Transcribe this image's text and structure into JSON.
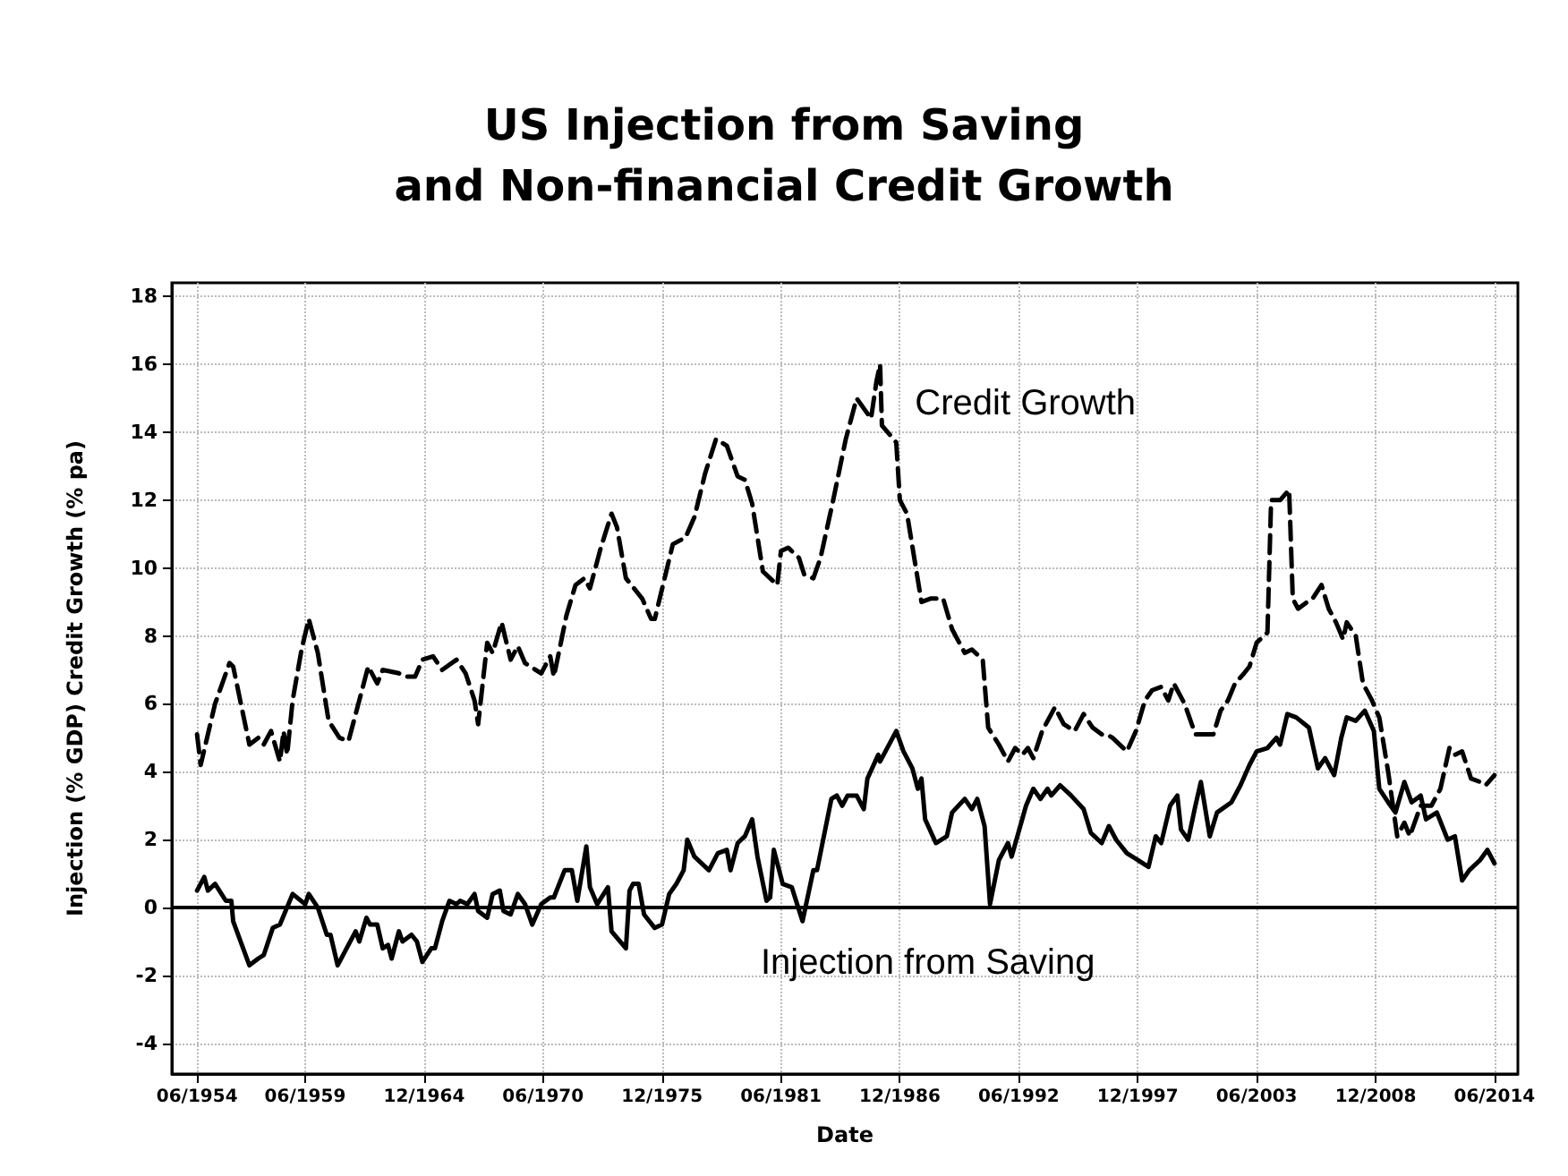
{
  "chart_data": {
    "type": "line",
    "title": "US Injection from Saving\nand Non-financial Credit Growth",
    "xlabel": "Date",
    "ylabel": "Injection (% GDP) Credit Growth (% pa)",
    "xlim": [
      "1953-04",
      "2015-07"
    ],
    "xticks": [
      {
        "value": "1954-06",
        "label": "06/1954"
      },
      {
        "value": "1959-06",
        "label": "06/1959"
      },
      {
        "value": "1964-12",
        "label": "12/1964"
      },
      {
        "value": "1970-06",
        "label": "06/1970"
      },
      {
        "value": "1975-12",
        "label": "12/1975"
      },
      {
        "value": "1981-06",
        "label": "06/1981"
      },
      {
        "value": "1986-12",
        "label": "12/1986"
      },
      {
        "value": "1992-06",
        "label": "06/1992"
      },
      {
        "value": "1997-12",
        "label": "12/1997"
      },
      {
        "value": "2003-06",
        "label": "06/2003"
      },
      {
        "value": "2008-12",
        "label": "12/2008"
      },
      {
        "value": "2014-06",
        "label": "06/2014"
      }
    ],
    "ylim": [
      -4.9,
      18.4
    ],
    "yticks": [
      -4,
      -2,
      0,
      2,
      4,
      6,
      8,
      10,
      12,
      14,
      16,
      18
    ],
    "grid": true,
    "legend": false,
    "marker": "none",
    "ref_lines": [
      {
        "axis": "y",
        "value": 0,
        "color": "#000000",
        "line_style": "solid"
      }
    ],
    "series": [
      {
        "name": "Credit Growth",
        "color": "#000000",
        "line_style": "dashed",
        "x": [
          "1954-06",
          "1954-08",
          "1955-04",
          "1955-12",
          "1956-02",
          "1956-11",
          "1957-04",
          "1957-07",
          "1957-11",
          "1958-04",
          "1958-06",
          "1958-08",
          "1958-11",
          "1959-04",
          "1959-08",
          "1960-01",
          "1960-07",
          "1961-01",
          "1961-06",
          "1961-12",
          "1962-05",
          "1962-10",
          "1963-01",
          "1963-10",
          "1964-02",
          "1964-07",
          "1964-11",
          "1965-05",
          "1965-10",
          "1966-06",
          "1966-11",
          "1967-04",
          "1967-06",
          "1967-11",
          "1968-02",
          "1968-07",
          "1968-12",
          "1969-04",
          "1969-08",
          "1970-05",
          "1970-10",
          "1970-12",
          "1971-07",
          "1971-12",
          "1972-05",
          "1972-08",
          "1973-02",
          "1973-08",
          "1973-11",
          "1974-04",
          "1974-10",
          "1975-01",
          "1975-06",
          "1975-08",
          "1976-01",
          "1976-06",
          "1977-01",
          "1977-06",
          "1977-12",
          "1978-06",
          "1978-12",
          "1979-06",
          "1979-10",
          "1980-02",
          "1980-08",
          "1981-04",
          "1981-06",
          "1981-10",
          "1982-04",
          "1982-07",
          "1982-12",
          "1983-04",
          "1983-11",
          "1984-06",
          "1984-12",
          "1985-04",
          "1985-08",
          "1985-11",
          "1986-01",
          "1986-02",
          "1986-10",
          "1986-12",
          "1987-04",
          "1987-08",
          "1987-12",
          "1988-05",
          "1988-12",
          "1989-05",
          "1989-12",
          "1990-04",
          "1990-10",
          "1991-01",
          "1991-07",
          "1991-12",
          "1992-04",
          "1992-08",
          "1992-11",
          "1993-02",
          "1993-07",
          "1994-02",
          "1994-07",
          "1995-01",
          "1995-06",
          "1995-11",
          "1996-04",
          "1996-07",
          "1996-10",
          "1997-06",
          "1997-11",
          "1998-04",
          "1998-08",
          "1999-01",
          "1999-05",
          "1999-08",
          "2000-02",
          "2000-08",
          "2001-01",
          "2001-06",
          "2001-10",
          "2002-02",
          "2002-06",
          "2002-11",
          "2003-02",
          "2003-06",
          "2003-12",
          "2004-02",
          "2004-07",
          "2004-12",
          "2005-02",
          "2005-05",
          "2005-10",
          "2006-01",
          "2006-06",
          "2006-10",
          "2007-02",
          "2007-06",
          "2007-08",
          "2008-01",
          "2008-05",
          "2008-10",
          "2009-02",
          "2009-07",
          "2009-12",
          "2010-04",
          "2010-07",
          "2011-01",
          "2011-07",
          "2011-12",
          "2012-05",
          "2012-08",
          "2012-12",
          "2013-05",
          "2013-10",
          "2014-01",
          "2014-06"
        ],
        "values": [
          5.1,
          4.2,
          6.0,
          7.2,
          7.1,
          4.8,
          5.0,
          4.8,
          5.2,
          4.3,
          5.2,
          4.5,
          6.1,
          7.6,
          8.5,
          7.5,
          5.5,
          5.0,
          4.9,
          6.1,
          7.1,
          6.6,
          7.0,
          6.9,
          6.8,
          6.8,
          7.3,
          7.4,
          7.0,
          7.3,
          6.9,
          6.1,
          5.4,
          7.8,
          7.5,
          8.4,
          7.3,
          7.7,
          7.2,
          6.9,
          7.4,
          6.8,
          8.6,
          9.5,
          9.7,
          9.4,
          10.6,
          11.6,
          11.2,
          9.7,
          9.3,
          9.1,
          8.5,
          8.5,
          9.6,
          10.7,
          10.9,
          11.5,
          12.8,
          13.8,
          13.6,
          12.7,
          12.6,
          11.9,
          9.9,
          9.5,
          10.5,
          10.6,
          10.3,
          9.8,
          9.7,
          10.3,
          12.0,
          13.8,
          15.0,
          14.7,
          14.4,
          15.5,
          16.0,
          14.2,
          13.7,
          12.0,
          11.6,
          10.3,
          9.0,
          9.1,
          9.1,
          8.2,
          7.5,
          7.6,
          7.3,
          5.3,
          4.8,
          4.3,
          4.7,
          4.5,
          4.7,
          4.4,
          5.2,
          5.9,
          5.4,
          5.2,
          5.7,
          5.3,
          5.1,
          5.1,
          5.0,
          4.6,
          5.2,
          6.1,
          6.4,
          6.5,
          6.1,
          6.6,
          6.0,
          5.1,
          5.1,
          5.1,
          5.8,
          6.1,
          6.6,
          6.9,
          7.1,
          7.8,
          8.1,
          12.0,
          12.0,
          12.3,
          9.1,
          8.8,
          9.0,
          9.1,
          9.5,
          8.8,
          8.4,
          7.9,
          8.4,
          8.0,
          6.6,
          6.1,
          5.6,
          4.0,
          2.1,
          2.5,
          2.1,
          3.0,
          3.0,
          3.5,
          4.7,
          4.5,
          4.6,
          3.8,
          3.7,
          3.6,
          3.9
        ]
      },
      {
        "name": "Injection from Saving",
        "color": "#000000",
        "line_style": "solid",
        "x": [
          "1954-06",
          "1954-10",
          "1954-12",
          "1955-04",
          "1955-10",
          "1956-01",
          "1956-02",
          "1956-11",
          "1957-04",
          "1957-07",
          "1957-12",
          "1958-04",
          "1958-11",
          "1959-06",
          "1959-08",
          "1960-01",
          "1960-06",
          "1960-08",
          "1960-12",
          "1961-05",
          "1961-10",
          "1961-12",
          "1962-04",
          "1962-06",
          "1962-10",
          "1963-01",
          "1963-04",
          "1963-06",
          "1963-10",
          "1963-12",
          "1964-05",
          "1964-08",
          "1964-11",
          "1965-04",
          "1965-06",
          "1965-10",
          "1966-02",
          "1966-06",
          "1966-08",
          "1966-12",
          "1967-04",
          "1967-06",
          "1967-11",
          "1968-02",
          "1968-06",
          "1968-08",
          "1968-12",
          "1969-04",
          "1969-08",
          "1969-12",
          "1970-05",
          "1970-10",
          "1970-12",
          "1971-06",
          "1971-10",
          "1972-01",
          "1972-06",
          "1972-08",
          "1972-12",
          "1973-06",
          "1973-08",
          "1974-04",
          "1974-06",
          "1974-08",
          "1974-11",
          "1975-02",
          "1975-08",
          "1975-12",
          "1976-04",
          "1976-08",
          "1976-12",
          "1977-02",
          "1977-06",
          "1978-02",
          "1978-07",
          "1978-12",
          "1979-02",
          "1979-06",
          "1979-10",
          "1980-02",
          "1980-05",
          "1980-10",
          "1980-12",
          "1981-02",
          "1981-07",
          "1981-12",
          "1982-06",
          "1982-12",
          "1983-02",
          "1983-10",
          "1984-01",
          "1984-04",
          "1984-07",
          "1984-12",
          "1985-04",
          "1985-06",
          "1985-12",
          "1986-01",
          "1986-10",
          "1987-02",
          "1987-07",
          "1987-10",
          "1987-12",
          "1988-02",
          "1988-08",
          "1989-02",
          "1989-05",
          "1989-12",
          "1990-04",
          "1990-07",
          "1990-11",
          "1991-02",
          "1991-07",
          "1991-12",
          "1992-02",
          "1992-10",
          "1993-02",
          "1993-06",
          "1993-10",
          "1993-12",
          "1994-05",
          "1994-11",
          "1995-06",
          "1995-10",
          "1996-04",
          "1996-08",
          "1996-12",
          "1997-06",
          "1997-12",
          "1998-06",
          "1998-10",
          "1999-01",
          "1999-06",
          "1999-10",
          "1999-12",
          "2000-04",
          "2000-08",
          "2000-11",
          "2001-04",
          "2001-08",
          "2002-04",
          "2002-09",
          "2003-02",
          "2003-06",
          "2003-12",
          "2004-05",
          "2004-07",
          "2004-11",
          "2005-04",
          "2005-11",
          "2006-04",
          "2006-08",
          "2007-01",
          "2007-05",
          "2007-08",
          "2008-01",
          "2008-06",
          "2008-11",
          "2009-02",
          "2009-07",
          "2009-11",
          "2010-04",
          "2010-08",
          "2011-01",
          "2011-04",
          "2011-10",
          "2012-04",
          "2012-08",
          "2012-12",
          "2013-04",
          "2013-10",
          "2014-02",
          "2014-06"
        ],
        "values": [
          0.5,
          0.9,
          0.5,
          0.7,
          0.2,
          0.2,
          -0.4,
          -1.7,
          -1.5,
          -1.4,
          -0.6,
          -0.5,
          0.4,
          0.1,
          0.4,
          0.0,
          -0.8,
          -0.8,
          -1.7,
          -1.2,
          -0.7,
          -1.0,
          -0.3,
          -0.5,
          -0.5,
          -1.2,
          -1.1,
          -1.5,
          -0.7,
          -1.0,
          -0.8,
          -1.0,
          -1.6,
          -1.2,
          -1.2,
          -0.4,
          0.2,
          0.1,
          0.2,
          0.1,
          0.4,
          -0.1,
          -0.3,
          0.4,
          0.5,
          -0.1,
          -0.2,
          0.4,
          0.1,
          -0.5,
          0.1,
          0.3,
          0.3,
          1.1,
          1.1,
          0.2,
          1.8,
          0.6,
          0.1,
          0.6,
          -0.7,
          -1.2,
          0.5,
          0.7,
          0.7,
          -0.2,
          -0.6,
          -0.5,
          0.4,
          0.7,
          1.1,
          2.0,
          1.5,
          1.1,
          1.6,
          1.7,
          1.1,
          1.9,
          2.1,
          2.6,
          1.5,
          0.2,
          0.3,
          1.7,
          0.7,
          0.6,
          -0.4,
          1.1,
          1.1,
          3.2,
          3.3,
          3.0,
          3.3,
          3.3,
          2.9,
          3.8,
          4.5,
          4.3,
          5.2,
          4.6,
          4.1,
          3.5,
          3.8,
          2.6,
          1.9,
          2.1,
          2.8,
          3.2,
          2.9,
          3.2,
          2.4,
          0.1,
          1.4,
          1.9,
          1.5,
          3.0,
          3.5,
          3.2,
          3.5,
          3.3,
          3.6,
          3.3,
          2.9,
          2.2,
          1.9,
          2.4,
          2.0,
          1.6,
          1.4,
          1.2,
          2.1,
          1.9,
          3.0,
          3.3,
          2.3,
          2.0,
          3.0,
          3.7,
          2.1,
          2.8,
          3.1,
          3.6,
          4.2,
          4.6,
          4.7,
          5.0,
          4.8,
          5.7,
          5.6,
          5.3,
          4.1,
          4.4,
          3.9,
          5.0,
          5.6,
          5.5,
          5.8,
          5.2,
          3.5,
          3.1,
          2.8,
          3.7,
          3.1,
          3.3,
          2.6,
          2.8,
          2.0,
          2.1,
          0.8,
          1.1,
          1.4,
          1.7,
          1.3
        ]
      }
    ]
  }
}
